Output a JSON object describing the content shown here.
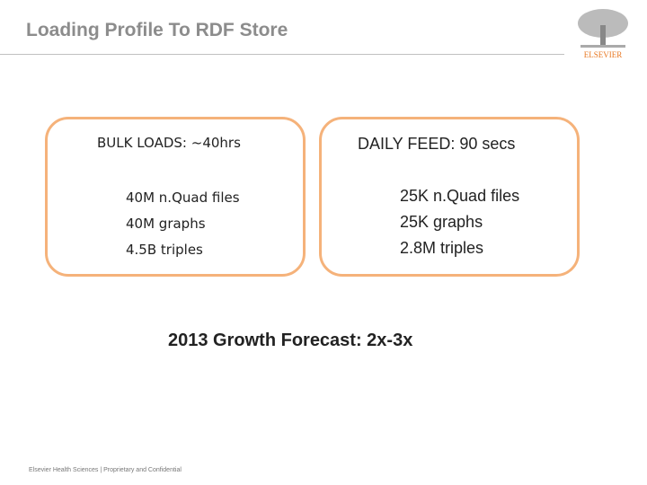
{
  "header": {
    "title": "Loading Profile To RDF Store",
    "logo": "ELSEVIER"
  },
  "bulk": {
    "heading": "BULK LOADS:  ~40hrs",
    "items": [
      "40M n.Quad files",
      "40M graphs",
      "4.5B triples"
    ]
  },
  "daily": {
    "heading": "DAILY FEED: 90 secs",
    "items": [
      "25K n.Quad files",
      "25K graphs",
      "2.8M triples"
    ]
  },
  "forecast": "2013 Growth Forecast:  2x-3x",
  "footer": "Elsevier Health Sciences | Proprietary and Confidential"
}
